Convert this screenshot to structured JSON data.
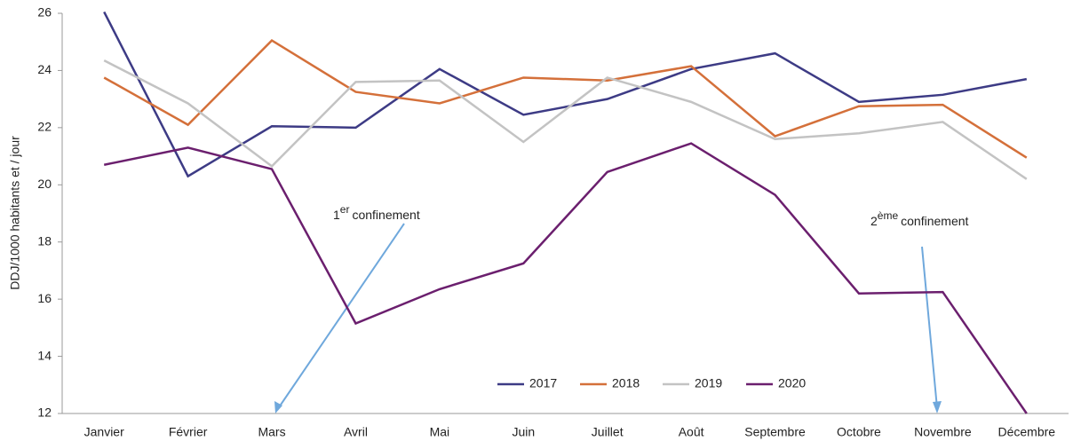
{
  "chart_data": {
    "type": "line",
    "y_label": "DDJ/1000 habitants et / jour",
    "categories": [
      "Janvier",
      "Février",
      "Mars",
      "Avril",
      "Mai",
      "Juin",
      "Juillet",
      "Août",
      "Septembre",
      "Octobre",
      "Novembre",
      "Décembre"
    ],
    "series": [
      {
        "name": "2017",
        "color": "#3d3b85",
        "values": [
          26.05,
          20.3,
          22.05,
          22.0,
          24.05,
          22.45,
          23.0,
          24.05,
          24.6,
          22.9,
          23.15,
          23.7
        ]
      },
      {
        "name": "2018",
        "color": "#d4703a",
        "values": [
          23.75,
          22.1,
          25.05,
          23.25,
          22.85,
          23.75,
          23.65,
          24.15,
          21.7,
          22.75,
          22.8,
          20.95
        ]
      },
      {
        "name": "2019",
        "color": "#c3c3c3",
        "values": [
          24.35,
          22.85,
          20.65,
          23.6,
          23.65,
          21.5,
          23.75,
          22.9,
          21.6,
          21.8,
          22.2,
          20.2
        ]
      },
      {
        "name": "2020",
        "color": "#6b1f6e",
        "values": [
          20.7,
          21.3,
          20.55,
          15.15,
          16.35,
          17.25,
          20.45,
          21.45,
          19.65,
          16.2,
          16.25,
          12.0
        ]
      }
    ],
    "ylim": [
      12,
      26
    ],
    "yticks": [
      12,
      14,
      16,
      18,
      20,
      22,
      24,
      26
    ],
    "legend": "bottom",
    "annotations": [
      {
        "base": "1",
        "sup": "er",
        "rest": "confinement"
      },
      {
        "base": "2",
        "sup": "ème",
        "rest": "confinement"
      }
    ]
  }
}
